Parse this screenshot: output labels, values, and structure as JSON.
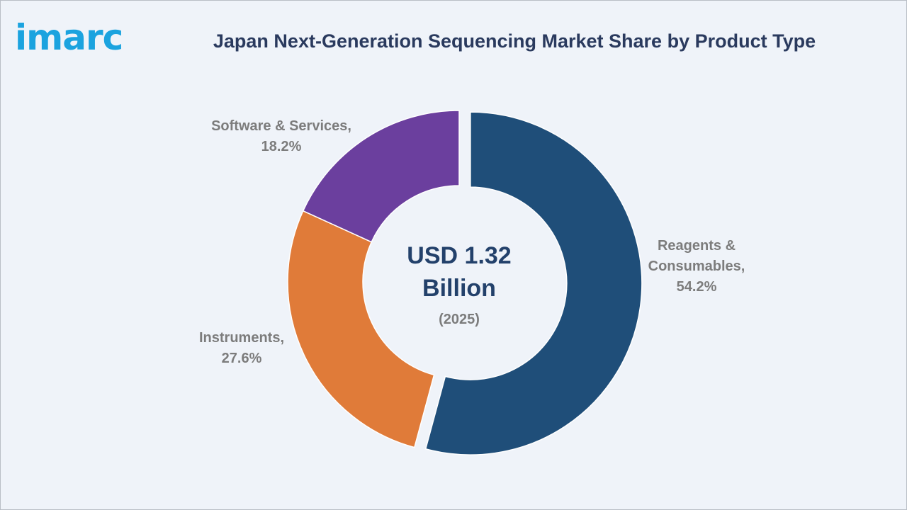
{
  "brand": {
    "logo_text": "imarc",
    "logo_color": "#1ba3df"
  },
  "colors": {
    "background": "#eff3f9",
    "title": "#2a3a5e",
    "label": "#7c7c7c",
    "center_text": "#23416b"
  },
  "chart_data": {
    "type": "pie",
    "variant": "donut",
    "title": "Japan Next-Generation Sequencing Market Share by Product Type",
    "center": {
      "value": "USD 1.32 Billion",
      "value_lines": [
        "USD 1.32",
        "Billion"
      ],
      "subtitle": "(2025)"
    },
    "slices": [
      {
        "label": "Reagents & Consumables",
        "label_lines": [
          "Reagents &",
          "Consumables,",
          "54.2%"
        ],
        "value": 54.2,
        "color": "#1f4e79",
        "exploded": true
      },
      {
        "label": "Instruments",
        "label_lines": [
          "Instruments,",
          "27.6%"
        ],
        "value": 27.6,
        "color": "#e07b39",
        "exploded": false
      },
      {
        "label": "Software & Services",
        "label_lines": [
          "Software & Services,",
          "18.2%"
        ],
        "value": 18.2,
        "color": "#6b3f9e",
        "exploded": false
      }
    ]
  }
}
